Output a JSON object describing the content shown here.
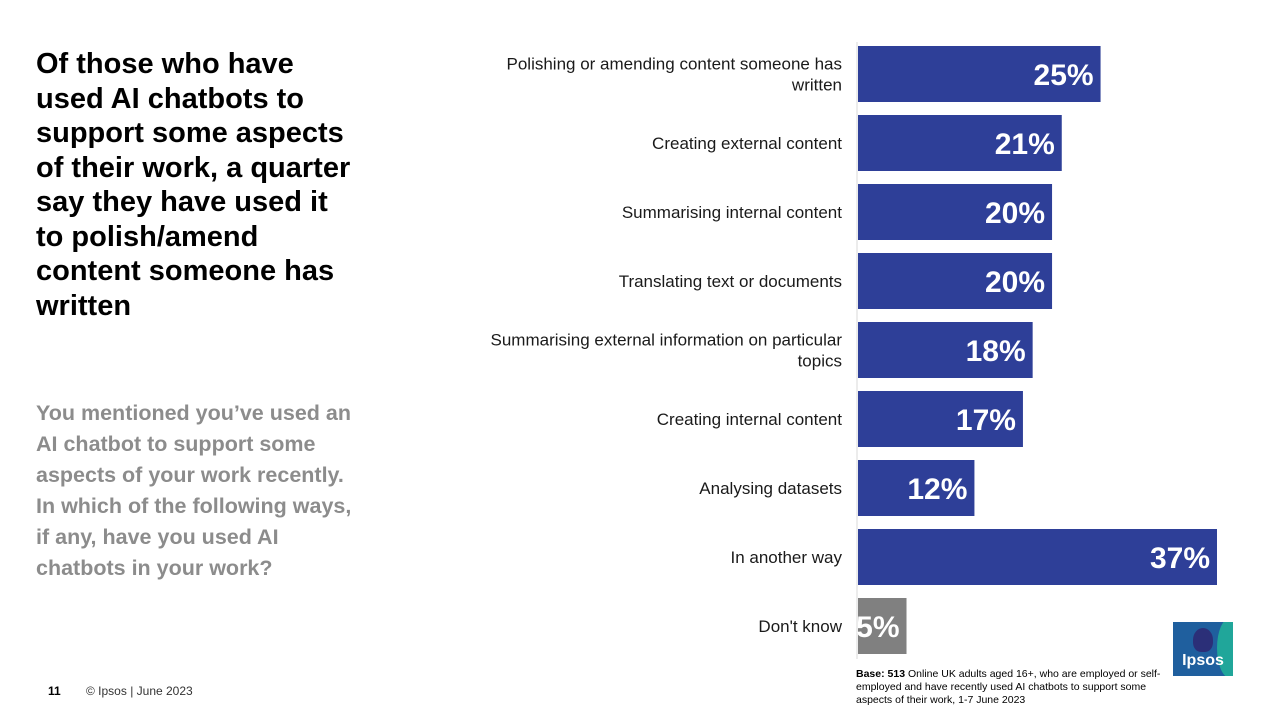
{
  "headline": "Of those who have used AI chatbots to support some aspects of their work, a quarter say they have used it to polish/amend content someone has written",
  "question": "You mentioned you’ve used an AI chatbot to support some aspects of your work recently. In which of the following ways, if any, have you used AI chatbots in your work?",
  "footer": {
    "page_number": "11",
    "copyright": "© Ipsos | June 2023",
    "base_label": "Base:",
    "base_count": "513",
    "base_text": "Online UK adults aged 16+, who are employed or self-employed and have recently used AI chatbots to support some aspects of their work, 1-7 June 2023",
    "logo_text": "Ipsos"
  },
  "colors": {
    "bar": "#2e3f98",
    "bar_dont_know": "#808080",
    "headline": "#000000",
    "question": "#8c8c8c",
    "logo_blue": "#1f5f9e",
    "logo_teal": "#20a69a"
  },
  "chart_data": {
    "type": "bar",
    "orientation": "horizontal",
    "categories": [
      [
        "Polishing or amending content someone has",
        "written"
      ],
      [
        "Creating external content"
      ],
      [
        "Summarising internal content"
      ],
      [
        "Translating text or documents"
      ],
      [
        "Summarising external information on particular",
        "topics"
      ],
      [
        "Creating internal content"
      ],
      [
        "Analysing datasets"
      ],
      [
        "In another way"
      ],
      [
        "Don't know"
      ]
    ],
    "values": [
      25,
      21,
      20,
      20,
      18,
      17,
      12,
      37,
      5
    ],
    "value_labels": [
      "25%",
      "21%",
      "20%",
      "20%",
      "18%",
      "17%",
      "12%",
      "37%",
      "5%"
    ],
    "unit": "%",
    "bar_colors": [
      "#2e3f98",
      "#2e3f98",
      "#2e3f98",
      "#2e3f98",
      "#2e3f98",
      "#2e3f98",
      "#2e3f98",
      "#2e3f98",
      "#808080"
    ],
    "xlim": [
      0,
      37
    ],
    "grid": false,
    "legend": "none"
  }
}
